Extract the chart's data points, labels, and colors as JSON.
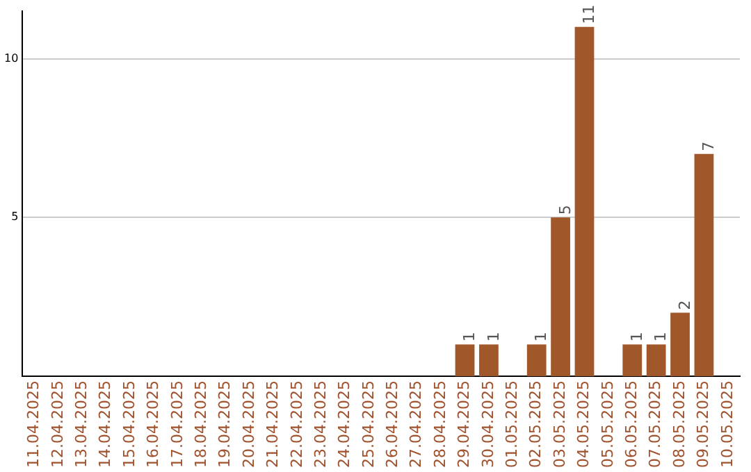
{
  "chart_data": {
    "type": "bar",
    "categories": [
      "11.04.2025",
      "12.04.2025",
      "13.04.2025",
      "14.04.2025",
      "15.04.2025",
      "16.04.2025",
      "17.04.2025",
      "18.04.2025",
      "19.04.2025",
      "20.04.2025",
      "21.04.2025",
      "22.04.2025",
      "23.04.2025",
      "24.04.2025",
      "25.04.2025",
      "26.04.2025",
      "27.04.2025",
      "28.04.2025",
      "29.04.2025",
      "30.04.2025",
      "01.05.2025",
      "02.05.2025",
      "03.05.2025",
      "04.05.2025",
      "05.05.2025",
      "06.05.2025",
      "07.05.2025",
      "08.05.2025",
      "09.05.2025",
      "10.05.2025"
    ],
    "values": [
      0,
      0,
      0,
      0,
      0,
      0,
      0,
      0,
      0,
      0,
      0,
      0,
      0,
      0,
      0,
      0,
      0,
      0,
      1,
      1,
      0,
      1,
      5,
      11,
      0,
      1,
      1,
      2,
      7,
      0
    ],
    "value_labels": [
      null,
      null,
      null,
      null,
      null,
      null,
      null,
      null,
      null,
      null,
      null,
      null,
      null,
      null,
      null,
      null,
      null,
      null,
      "1",
      "1",
      null,
      "1",
      "5",
      "11",
      null,
      "1",
      "1",
      "2",
      "7",
      null
    ],
    "color": "#a0582b",
    "ylim": [
      0,
      11.5
    ],
    "yticks": [
      5,
      10
    ],
    "grid": "y"
  }
}
